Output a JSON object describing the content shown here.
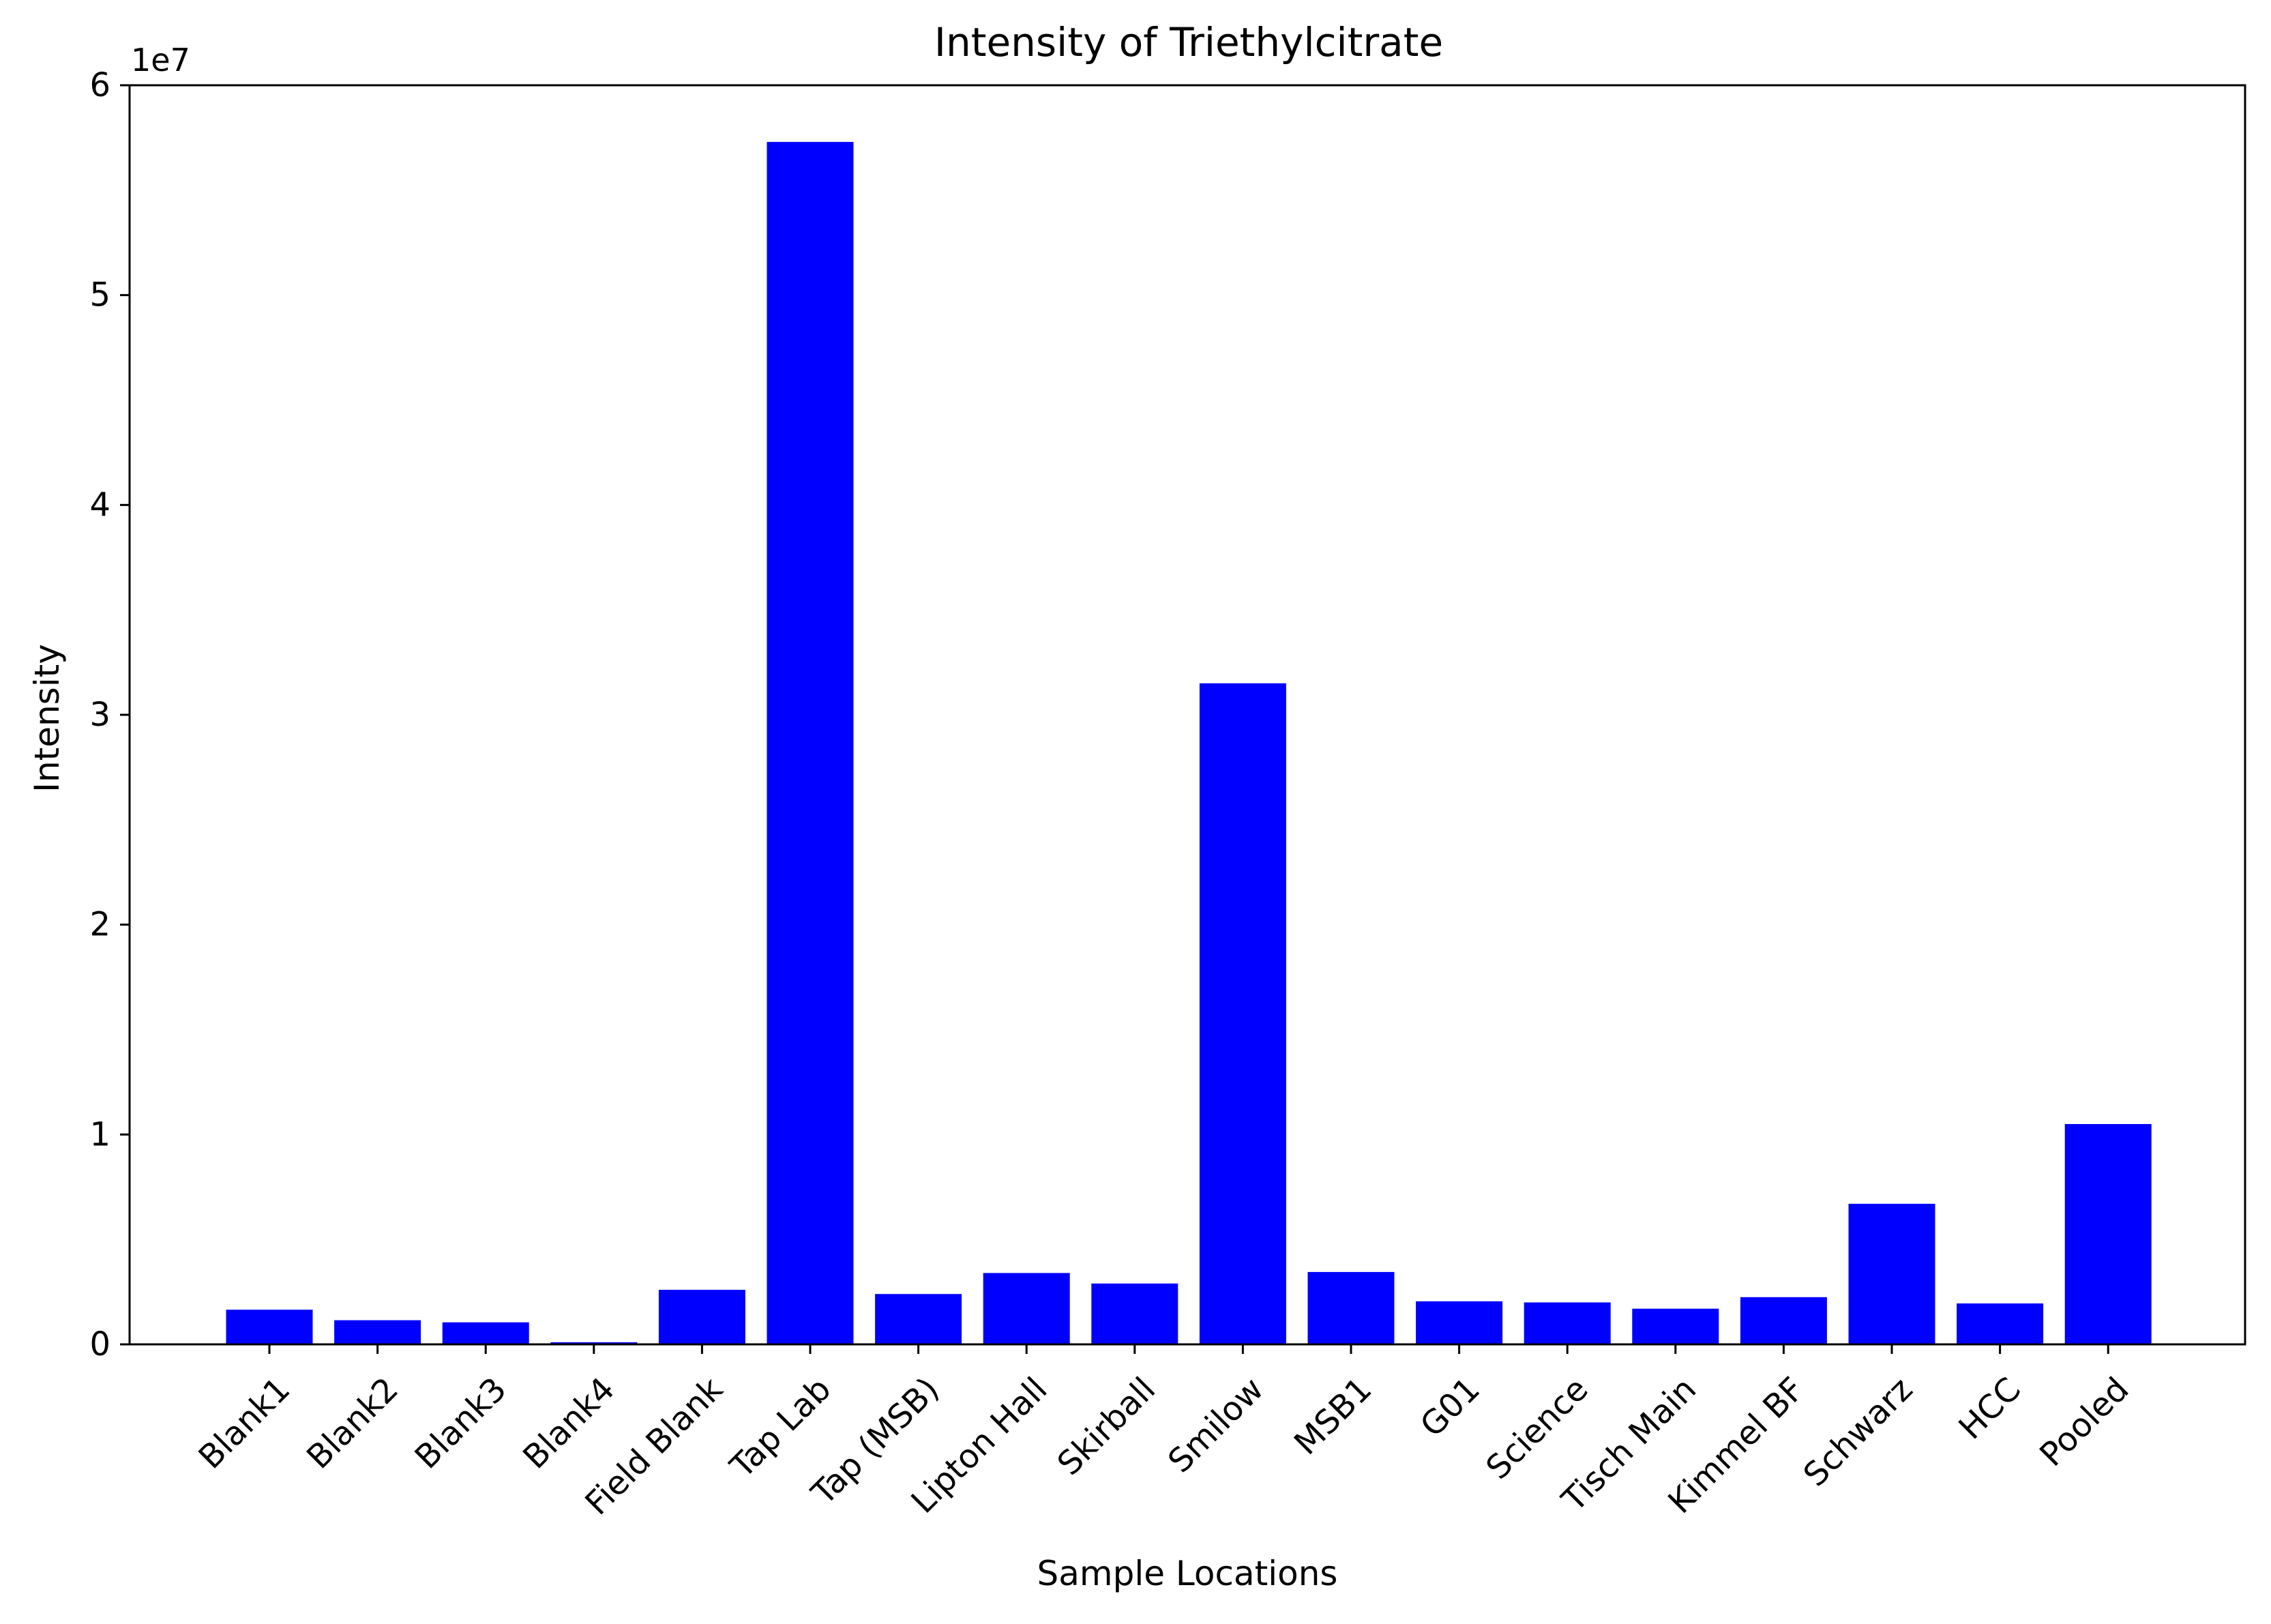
{
  "chart_data": {
    "type": "bar",
    "title": "Intensity of Triethylcitrate",
    "xlabel": "Sample Locations",
    "ylabel": "Intensity",
    "y_offset_label": "1e7",
    "categories": [
      "Blank1",
      "Blank2",
      "Blank3",
      "Blank4",
      "Field Blank",
      "Tap Lab",
      "Tap (MSB)",
      "Lipton Hall",
      "Skirball",
      "Smilow",
      "MSB1",
      "G01",
      "Science",
      "Tisch Main",
      "Kimmel BF",
      "Schwarz",
      "HCC",
      "Pooled"
    ],
    "values": [
      1650000,
      1150000,
      1050000,
      100000,
      2600000,
      57300000,
      2400000,
      3400000,
      2900000,
      31500000,
      3450000,
      2050000,
      2000000,
      1700000,
      2250000,
      6700000,
      1950000,
      10500000
    ],
    "ylim": [
      0,
      60000000
    ],
    "yticks": [
      0,
      10000000,
      20000000,
      30000000,
      40000000,
      50000000,
      60000000
    ],
    "ytick_labels": [
      "0",
      "1",
      "2",
      "3",
      "4",
      "5",
      "6"
    ],
    "bar_color": "#0000ff",
    "grid": false
  }
}
